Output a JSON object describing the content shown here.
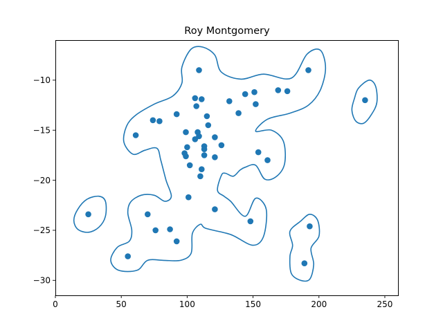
{
  "chart_data": {
    "type": "scatter",
    "title": "Roy Montgomery",
    "xlabel": "",
    "ylabel": "",
    "xlim": [
      0,
      260
    ],
    "ylim": [
      -31.5,
      -6
    ],
    "xticks": [
      0,
      50,
      100,
      150,
      200,
      250
    ],
    "yticks": [
      -30,
      -25,
      -20,
      -15,
      -10
    ],
    "ytick_labels": [
      "−30",
      "−25",
      "−20",
      "−15",
      "−10"
    ],
    "grid": false,
    "colors": {
      "points": "#1f77b4",
      "contour": "#1f77b4"
    },
    "points": [
      {
        "x": 109,
        "y": -9.0
      },
      {
        "x": 192,
        "y": -9.0
      },
      {
        "x": 144,
        "y": -11.4
      },
      {
        "x": 151,
        "y": -11.2
      },
      {
        "x": 169,
        "y": -11.0
      },
      {
        "x": 176,
        "y": -11.1
      },
      {
        "x": 106,
        "y": -11.8
      },
      {
        "x": 111,
        "y": -11.9
      },
      {
        "x": 132,
        "y": -12.1
      },
      {
        "x": 152,
        "y": -12.4
      },
      {
        "x": 107,
        "y": -12.6
      },
      {
        "x": 235,
        "y": -12.0
      },
      {
        "x": 92,
        "y": -13.4
      },
      {
        "x": 139,
        "y": -13.3
      },
      {
        "x": 115,
        "y": -13.6
      },
      {
        "x": 74,
        "y": -14.0
      },
      {
        "x": 79,
        "y": -14.1
      },
      {
        "x": 116,
        "y": -14.5
      },
      {
        "x": 61,
        "y": -15.5
      },
      {
        "x": 99,
        "y": -15.2
      },
      {
        "x": 108,
        "y": -15.2
      },
      {
        "x": 109,
        "y": -15.6
      },
      {
        "x": 106,
        "y": -15.9
      },
      {
        "x": 121,
        "y": -15.7
      },
      {
        "x": 100,
        "y": -16.7
      },
      {
        "x": 113,
        "y": -16.6
      },
      {
        "x": 126,
        "y": -16.5
      },
      {
        "x": 113,
        "y": -16.9
      },
      {
        "x": 98,
        "y": -17.3
      },
      {
        "x": 154,
        "y": -17.2
      },
      {
        "x": 99,
        "y": -17.6
      },
      {
        "x": 113,
        "y": -17.5
      },
      {
        "x": 121,
        "y": -17.7
      },
      {
        "x": 161,
        "y": -18.0
      },
      {
        "x": 102,
        "y": -18.5
      },
      {
        "x": 111,
        "y": -18.9
      },
      {
        "x": 110,
        "y": -19.6
      },
      {
        "x": 101,
        "y": -21.7
      },
      {
        "x": 121,
        "y": -22.9
      },
      {
        "x": 25,
        "y": -23.4
      },
      {
        "x": 70,
        "y": -23.4
      },
      {
        "x": 148,
        "y": -24.1
      },
      {
        "x": 193,
        "y": -24.6
      },
      {
        "x": 76,
        "y": -25.0
      },
      {
        "x": 87,
        "y": -24.9
      },
      {
        "x": 92,
        "y": -26.1
      },
      {
        "x": 55,
        "y": -27.6
      },
      {
        "x": 189,
        "y": -28.3
      }
    ],
    "contours": [
      [
        [
          61,
          -13.5
        ],
        [
          75,
          -12.4
        ],
        [
          89,
          -11.6
        ],
        [
          96,
          -10.3
        ],
        [
          96,
          -8.7
        ],
        [
          103,
          -6.9
        ],
        [
          112,
          -6.7
        ],
        [
          121,
          -7.5
        ],
        [
          126,
          -9.2
        ],
        [
          141,
          -9.9
        ],
        [
          158,
          -9.4
        ],
        [
          179,
          -9.8
        ],
        [
          191,
          -7.4
        ],
        [
          201,
          -7.0
        ],
        [
          205,
          -8.8
        ],
        [
          201,
          -11.0
        ],
        [
          192,
          -12.5
        ],
        [
          178,
          -13.3
        ],
        [
          161,
          -13.9
        ],
        [
          152,
          -15.1
        ],
        [
          164,
          -15.0
        ],
        [
          173,
          -16.1
        ],
        [
          174,
          -18.3
        ],
        [
          168,
          -19.6
        ],
        [
          159,
          -19.9
        ],
        [
          152,
          -18.5
        ],
        [
          144,
          -18.7
        ],
        [
          140,
          -19.0
        ],
        [
          135,
          -19.6
        ],
        [
          129,
          -19.3
        ],
        [
          126,
          -19.5
        ],
        [
          123,
          -21.0
        ],
        [
          128,
          -21.6
        ],
        [
          133,
          -22.1
        ],
        [
          144,
          -23.6
        ],
        [
          152,
          -21.8
        ],
        [
          160,
          -22.9
        ],
        [
          158,
          -25.6
        ],
        [
          150,
          -26.5
        ],
        [
          136,
          -25.6
        ],
        [
          130,
          -25.3
        ],
        [
          114,
          -24.8
        ],
        [
          110,
          -24.4
        ],
        [
          104,
          -25.3
        ],
        [
          103,
          -27.3
        ],
        [
          95,
          -28.0
        ],
        [
          82,
          -28.0
        ],
        [
          70,
          -28.0
        ],
        [
          62,
          -29.0
        ],
        [
          48,
          -29.0
        ],
        [
          42,
          -28.0
        ],
        [
          47,
          -26.7
        ],
        [
          56,
          -26.1
        ],
        [
          58,
          -25.0
        ],
        [
          55,
          -23.3
        ],
        [
          57,
          -22.2
        ],
        [
          65,
          -21.5
        ],
        [
          75,
          -21.5
        ],
        [
          83,
          -22.1
        ],
        [
          88,
          -21.6
        ],
        [
          84,
          -20.0
        ],
        [
          80,
          -18.0
        ],
        [
          77,
          -16.8
        ],
        [
          68,
          -17.0
        ],
        [
          59,
          -17.4
        ],
        [
          52,
          -16.2
        ],
        [
          54,
          -14.6
        ],
        [
          61,
          -13.5
        ]
      ],
      [
        [
          230,
          -10.8
        ],
        [
          238,
          -10.0
        ],
        [
          243,
          -10.6
        ],
        [
          244,
          -12.2
        ],
        [
          240,
          -13.4
        ],
        [
          234,
          -14.3
        ],
        [
          228,
          -14.1
        ],
        [
          225,
          -13.0
        ],
        [
          227,
          -11.8
        ],
        [
          230,
          -10.8
        ]
      ],
      [
        [
          17,
          -22.9
        ],
        [
          24,
          -21.9
        ],
        [
          33,
          -21.6
        ],
        [
          38,
          -22.1
        ],
        [
          38,
          -23.6
        ],
        [
          33,
          -24.7
        ],
        [
          25,
          -25.2
        ],
        [
          17,
          -24.9
        ],
        [
          14,
          -24.0
        ],
        [
          17,
          -22.9
        ]
      ],
      [
        [
          178,
          -25.1
        ],
        [
          186,
          -24.1
        ],
        [
          193,
          -23.4
        ],
        [
          199,
          -24.0
        ],
        [
          200,
          -25.6
        ],
        [
          194,
          -26.8
        ],
        [
          196,
          -28.4
        ],
        [
          193,
          -29.9
        ],
        [
          186,
          -30.0
        ],
        [
          179,
          -29.3
        ],
        [
          178,
          -27.6
        ],
        [
          180,
          -26.5
        ],
        [
          178,
          -25.1
        ]
      ]
    ]
  }
}
